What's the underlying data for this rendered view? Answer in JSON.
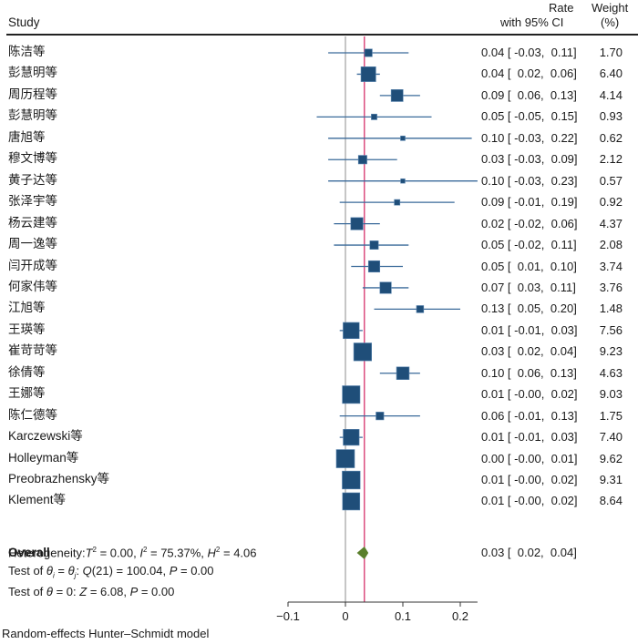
{
  "header": {
    "study": "Study",
    "rate_line1": "Rate",
    "rate_line2": "with 95% CI",
    "weight_line1": "Weight",
    "weight_line2": "(%)"
  },
  "colors": {
    "marker": "#1f4e79",
    "ci_line": "#3a6a9a",
    "overall_line": "#d6336c",
    "null_line": "#a0a0a0",
    "diamond": "#5a7f2b"
  },
  "chart_data": {
    "type": "forest",
    "title": "",
    "xlabel": "",
    "x_ticks": [
      -0.1,
      0,
      0.1,
      0.2
    ],
    "x_tick_labels": [
      "−0.1",
      "0",
      "0.1",
      "0.2"
    ],
    "xlim": [
      -0.1,
      0.23
    ],
    "null_value": 0,
    "studies": [
      {
        "name": "陈洁等",
        "rate": 0.04,
        "lo": -0.03,
        "hi": 0.11,
        "weight": 1.7,
        "ci_text": "0.04 [ -0.03,  0.11]",
        "weight_text": "1.70"
      },
      {
        "name": "彭慧明等",
        "rate": 0.04,
        "lo": 0.02,
        "hi": 0.06,
        "weight": 6.4,
        "ci_text": "0.04 [  0.02,  0.06]",
        "weight_text": "6.40"
      },
      {
        "name": "周历程等",
        "rate": 0.09,
        "lo": 0.06,
        "hi": 0.13,
        "weight": 4.14,
        "ci_text": "0.09 [  0.06,  0.13]",
        "weight_text": "4.14"
      },
      {
        "name": "彭慧明等",
        "rate": 0.05,
        "lo": -0.05,
        "hi": 0.15,
        "weight": 0.93,
        "ci_text": "0.05 [ -0.05,  0.15]",
        "weight_text": "0.93"
      },
      {
        "name": "唐旭等",
        "rate": 0.1,
        "lo": -0.03,
        "hi": 0.22,
        "weight": 0.62,
        "ci_text": "0.10 [ -0.03,  0.22]",
        "weight_text": "0.62"
      },
      {
        "name": "穆文博等",
        "rate": 0.03,
        "lo": -0.03,
        "hi": 0.09,
        "weight": 2.12,
        "ci_text": "0.03 [ -0.03,  0.09]",
        "weight_text": "2.12"
      },
      {
        "name": "黄子达等",
        "rate": 0.1,
        "lo": -0.03,
        "hi": 0.23,
        "weight": 0.57,
        "ci_text": "0.10 [ -0.03,  0.23]",
        "weight_text": "0.57"
      },
      {
        "name": "张泽宇等",
        "rate": 0.09,
        "lo": -0.01,
        "hi": 0.19,
        "weight": 0.92,
        "ci_text": "0.09 [ -0.01,  0.19]",
        "weight_text": "0.92"
      },
      {
        "name": "杨云建等",
        "rate": 0.02,
        "lo": -0.02,
        "hi": 0.06,
        "weight": 4.37,
        "ci_text": "0.02 [ -0.02,  0.06]",
        "weight_text": "4.37"
      },
      {
        "name": "周一逸等",
        "rate": 0.05,
        "lo": -0.02,
        "hi": 0.11,
        "weight": 2.08,
        "ci_text": "0.05 [ -0.02,  0.11]",
        "weight_text": "2.08"
      },
      {
        "name": "闫开成等",
        "rate": 0.05,
        "lo": 0.01,
        "hi": 0.1,
        "weight": 3.74,
        "ci_text": "0.05 [  0.01,  0.10]",
        "weight_text": "3.74"
      },
      {
        "name": "何家伟等",
        "rate": 0.07,
        "lo": 0.03,
        "hi": 0.11,
        "weight": 3.76,
        "ci_text": "0.07 [  0.03,  0.11]",
        "weight_text": "3.76"
      },
      {
        "name": "江旭等",
        "rate": 0.13,
        "lo": 0.05,
        "hi": 0.2,
        "weight": 1.48,
        "ci_text": "0.13 [  0.05,  0.20]",
        "weight_text": "1.48"
      },
      {
        "name": "王瑛等",
        "rate": 0.01,
        "lo": -0.01,
        "hi": 0.03,
        "weight": 7.56,
        "ci_text": "0.01 [ -0.01,  0.03]",
        "weight_text": "7.56"
      },
      {
        "name": "崔苛苛等",
        "rate": 0.03,
        "lo": 0.02,
        "hi": 0.04,
        "weight": 9.23,
        "ci_text": "0.03 [  0.02,  0.04]",
        "weight_text": "9.23"
      },
      {
        "name": "徐倩等",
        "rate": 0.1,
        "lo": 0.06,
        "hi": 0.13,
        "weight": 4.63,
        "ci_text": "0.10 [  0.06,  0.13]",
        "weight_text": "4.63"
      },
      {
        "name": "王娜等",
        "rate": 0.01,
        "lo": -0.0,
        "hi": 0.02,
        "weight": 9.03,
        "ci_text": "0.01 [ -0.00,  0.02]",
        "weight_text": "9.03"
      },
      {
        "name": "陈仁德等",
        "rate": 0.06,
        "lo": -0.01,
        "hi": 0.13,
        "weight": 1.75,
        "ci_text": "0.06 [ -0.01,  0.13]",
        "weight_text": "1.75"
      },
      {
        "name": "Karczewski等",
        "rate": 0.01,
        "lo": -0.01,
        "hi": 0.03,
        "weight": 7.4,
        "ci_text": "0.01 [ -0.01,  0.03]",
        "weight_text": "7.40"
      },
      {
        "name": "Holleyman等",
        "rate": 0.0,
        "lo": -0.0,
        "hi": 0.01,
        "weight": 9.62,
        "ci_text": "0.00 [ -0.00,  0.01]",
        "weight_text": "9.62"
      },
      {
        "name": "Preobrazhensky等",
        "rate": 0.01,
        "lo": -0.0,
        "hi": 0.02,
        "weight": 9.31,
        "ci_text": "0.01 [ -0.00,  0.02]",
        "weight_text": "9.31"
      },
      {
        "name": "Klement等",
        "rate": 0.01,
        "lo": -0.0,
        "hi": 0.02,
        "weight": 8.64,
        "ci_text": "0.01 [ -0.00,  0.02]",
        "weight_text": "8.64"
      }
    ],
    "overall": {
      "label": "Overall",
      "rate": 0.033,
      "lo": 0.02,
      "hi": 0.04,
      "ci_text": "0.03 [  0.02,  0.04]"
    }
  },
  "stats": {
    "heterogeneity": {
      "prefix": "Heterogeneity:",
      "tau2_sym": "T",
      "tau2_val": " = 0.00, ",
      "i2_sym": "I",
      "i2_val": " = 75.37%, ",
      "h2_sym": "H",
      "h2_val": " = 4.06",
      "sup": "2"
    },
    "test_equal": {
      "prefix": "Test of ",
      "theta": "θ",
      "sub_i": "i",
      "eq": " = ",
      "sub_j": "j",
      "q": ": ",
      "q_sym": "Q",
      "q_val": "(21) = 100.04, ",
      "p_sym": "P",
      "p_val": " = 0.00"
    },
    "test_zero": {
      "prefix": "Test of ",
      "theta": "θ",
      "mid": " = 0: ",
      "z_sym": "Z",
      "z_val": " = 6.08, ",
      "p_sym": "P",
      "p_val": " = 0.00"
    }
  },
  "footer": "Random-effects Hunter–Schmidt model"
}
